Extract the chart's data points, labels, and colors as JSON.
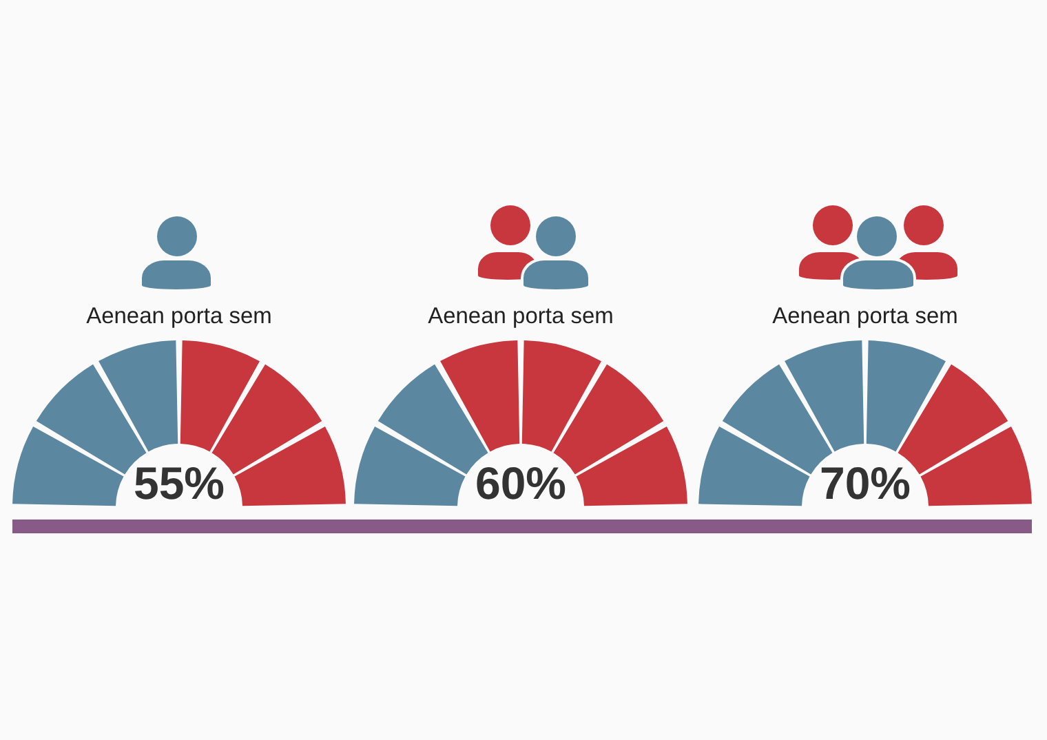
{
  "chart_data": [
    {
      "type": "donut",
      "title": "Aenean porta sem",
      "categories": [
        null,
        null,
        null,
        null,
        null,
        null
      ],
      "values": [
        16.67,
        16.67,
        16.66,
        16.67,
        16.67,
        16.66
      ],
      "colors": [
        "#5b87a0",
        "#5b87a0",
        "#5b87a0",
        "#c8363e",
        "#c8363e",
        "#c8363e"
      ],
      "annotations": [
        "55%"
      ]
    },
    {
      "type": "donut",
      "title": "Aenean porta sem",
      "categories": [
        null,
        null,
        null,
        null,
        null,
        null
      ],
      "values": [
        16.67,
        16.67,
        16.66,
        16.67,
        16.67,
        16.66
      ],
      "colors": [
        "#5b87a0",
        "#5b87a0",
        "#c8363e",
        "#c8363e",
        "#c8363e",
        "#c8363e"
      ],
      "annotations": [
        "60%"
      ]
    },
    {
      "type": "donut",
      "title": "Aenean porta sem",
      "categories": [
        null,
        null,
        null,
        null,
        null,
        null
      ],
      "values": [
        16.67,
        16.67,
        16.66,
        16.67,
        16.67,
        16.66
      ],
      "colors": [
        "#5b87a0",
        "#5b87a0",
        "#5b87a0",
        "#5b87a0",
        "#c8363e",
        "#c8363e"
      ],
      "annotations": [
        "70%"
      ]
    }
  ]
}
